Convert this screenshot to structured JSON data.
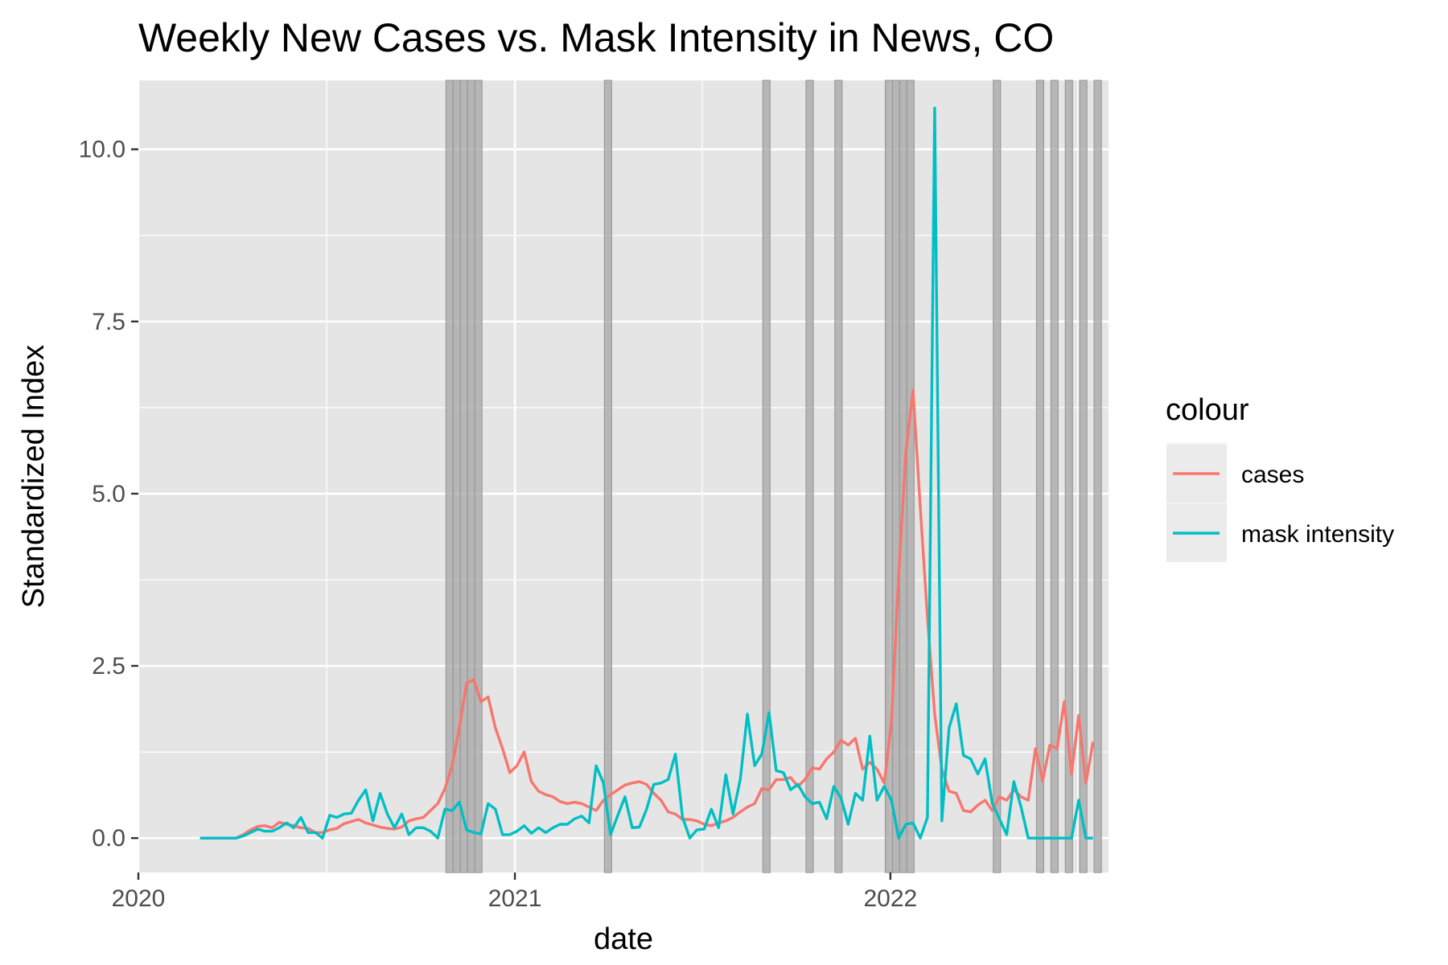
{
  "chart_data": {
    "type": "line",
    "title": "Weekly New Cases vs. Mask Intensity in News, CO",
    "xlabel": "date",
    "ylabel": "Standardized Index",
    "xlim": [
      "2020-01-01",
      "2022-08-01"
    ],
    "ylim": [
      -0.5,
      11
    ],
    "x_ticks": [
      {
        "label": "2020",
        "date": "2020-01-01"
      },
      {
        "label": "2021",
        "date": "2021-01-01"
      },
      {
        "label": "2022",
        "date": "2022-01-01"
      }
    ],
    "y_ticks": [
      {
        "label": "0.0",
        "value": 0
      },
      {
        "label": "2.5",
        "value": 2.5
      },
      {
        "label": "5.0",
        "value": 5
      },
      {
        "label": "7.5",
        "value": 7.5
      },
      {
        "label": "10.0",
        "value": 10
      }
    ],
    "grid": true,
    "background": "#e5e5e5",
    "legend": {
      "title": "colour",
      "position": "right"
    },
    "shaded_weeks": [
      "2020-10-26",
      "2020-11-02",
      "2020-11-09",
      "2020-11-16",
      "2020-11-23",
      "2021-03-29",
      "2021-08-30",
      "2021-10-11",
      "2021-11-08",
      "2021-12-27",
      "2022-01-03",
      "2022-01-10",
      "2022-01-17",
      "2022-04-11",
      "2022-05-23",
      "2022-06-06",
      "2022-06-20",
      "2022-07-04",
      "2022-07-18"
    ],
    "shade_color": "#a6a6a6",
    "series": [
      {
        "name": "cases",
        "color": "#f8766d",
        "points": [
          [
            "2020-03-01",
            0
          ],
          [
            "2020-03-08",
            0
          ],
          [
            "2020-03-15",
            0
          ],
          [
            "2020-03-22",
            0
          ],
          [
            "2020-03-29",
            0
          ],
          [
            "2020-04-05",
            0
          ],
          [
            "2020-04-12",
            0.05
          ],
          [
            "2020-04-19",
            0.12
          ],
          [
            "2020-04-26",
            0.17
          ],
          [
            "2020-05-03",
            0.18
          ],
          [
            "2020-05-10",
            0.15
          ],
          [
            "2020-05-17",
            0.23
          ],
          [
            "2020-05-24",
            0.2
          ],
          [
            "2020-05-31",
            0.18
          ],
          [
            "2020-06-07",
            0.15
          ],
          [
            "2020-06-14",
            0.14
          ],
          [
            "2020-06-21",
            0.08
          ],
          [
            "2020-06-28",
            0.08
          ],
          [
            "2020-07-05",
            0.12
          ],
          [
            "2020-07-12",
            0.14
          ],
          [
            "2020-07-19",
            0.21
          ],
          [
            "2020-07-26",
            0.24
          ],
          [
            "2020-08-02",
            0.27
          ],
          [
            "2020-08-09",
            0.22
          ],
          [
            "2020-08-16",
            0.19
          ],
          [
            "2020-08-23",
            0.16
          ],
          [
            "2020-08-30",
            0.14
          ],
          [
            "2020-09-06",
            0.13
          ],
          [
            "2020-09-13",
            0.16
          ],
          [
            "2020-09-20",
            0.25
          ],
          [
            "2020-09-27",
            0.28
          ],
          [
            "2020-10-04",
            0.3
          ],
          [
            "2020-10-11",
            0.4
          ],
          [
            "2020-10-18",
            0.5
          ],
          [
            "2020-10-25",
            0.72
          ],
          [
            "2020-11-01",
            1.05
          ],
          [
            "2020-11-08",
            1.6
          ],
          [
            "2020-11-15",
            2.25
          ],
          [
            "2020-11-22",
            2.3
          ],
          [
            "2020-11-29",
            1.98
          ],
          [
            "2020-12-06",
            2.05
          ],
          [
            "2020-12-13",
            1.6
          ],
          [
            "2020-12-20",
            1.3
          ],
          [
            "2020-12-27",
            0.95
          ],
          [
            "2021-01-03",
            1.05
          ],
          [
            "2021-01-10",
            1.25
          ],
          [
            "2021-01-17",
            0.82
          ],
          [
            "2021-01-24",
            0.68
          ],
          [
            "2021-01-31",
            0.63
          ],
          [
            "2021-02-07",
            0.6
          ],
          [
            "2021-02-14",
            0.53
          ],
          [
            "2021-02-21",
            0.5
          ],
          [
            "2021-02-28",
            0.52
          ],
          [
            "2021-03-07",
            0.5
          ],
          [
            "2021-03-14",
            0.45
          ],
          [
            "2021-03-21",
            0.4
          ],
          [
            "2021-03-28",
            0.55
          ],
          [
            "2021-04-04",
            0.63
          ],
          [
            "2021-04-11",
            0.7
          ],
          [
            "2021-04-18",
            0.77
          ],
          [
            "2021-04-25",
            0.8
          ],
          [
            "2021-05-02",
            0.82
          ],
          [
            "2021-05-09",
            0.78
          ],
          [
            "2021-05-16",
            0.65
          ],
          [
            "2021-05-23",
            0.55
          ],
          [
            "2021-05-30",
            0.38
          ],
          [
            "2021-06-06",
            0.35
          ],
          [
            "2021-06-13",
            0.27
          ],
          [
            "2021-06-20",
            0.27
          ],
          [
            "2021-06-27",
            0.25
          ],
          [
            "2021-07-04",
            0.2
          ],
          [
            "2021-07-11",
            0.18
          ],
          [
            "2021-07-18",
            0.22
          ],
          [
            "2021-07-25",
            0.25
          ],
          [
            "2021-08-01",
            0.3
          ],
          [
            "2021-08-08",
            0.38
          ],
          [
            "2021-08-15",
            0.45
          ],
          [
            "2021-08-22",
            0.5
          ],
          [
            "2021-08-29",
            0.72
          ],
          [
            "2021-09-05",
            0.7
          ],
          [
            "2021-09-12",
            0.85
          ],
          [
            "2021-09-19",
            0.85
          ],
          [
            "2021-09-26",
            0.88
          ],
          [
            "2021-10-03",
            0.75
          ],
          [
            "2021-10-10",
            0.85
          ],
          [
            "2021-10-17",
            1.02
          ],
          [
            "2021-10-24",
            1.0
          ],
          [
            "2021-10-31",
            1.15
          ],
          [
            "2021-11-07",
            1.25
          ],
          [
            "2021-11-14",
            1.42
          ],
          [
            "2021-11-21",
            1.35
          ],
          [
            "2021-11-28",
            1.45
          ],
          [
            "2021-12-05",
            1.0
          ],
          [
            "2021-12-12",
            1.1
          ],
          [
            "2021-12-19",
            1.0
          ],
          [
            "2021-12-26",
            0.8
          ],
          [
            "2022-01-02",
            1.7
          ],
          [
            "2022-01-09",
            3.8
          ],
          [
            "2022-01-16",
            5.6
          ],
          [
            "2022-01-23",
            6.5
          ],
          [
            "2022-01-30",
            4.8
          ],
          [
            "2022-02-06",
            3.2
          ],
          [
            "2022-02-13",
            1.8
          ],
          [
            "2022-02-20",
            1.0
          ],
          [
            "2022-02-27",
            0.68
          ],
          [
            "2022-03-06",
            0.65
          ],
          [
            "2022-03-13",
            0.4
          ],
          [
            "2022-03-20",
            0.38
          ],
          [
            "2022-03-27",
            0.48
          ],
          [
            "2022-04-03",
            0.55
          ],
          [
            "2022-04-10",
            0.4
          ],
          [
            "2022-04-17",
            0.6
          ],
          [
            "2022-04-24",
            0.55
          ],
          [
            "2022-05-01",
            0.7
          ],
          [
            "2022-05-08",
            0.6
          ],
          [
            "2022-05-15",
            0.55
          ],
          [
            "2022-05-22",
            1.3
          ],
          [
            "2022-05-29",
            0.83
          ],
          [
            "2022-06-05",
            1.35
          ],
          [
            "2022-06-12",
            1.3
          ],
          [
            "2022-06-19",
            1.98
          ],
          [
            "2022-06-26",
            0.93
          ],
          [
            "2022-07-03",
            1.78
          ],
          [
            "2022-07-10",
            0.8
          ],
          [
            "2022-07-17",
            1.4
          ]
        ]
      },
      {
        "name": "mask intensity",
        "color": "#00bfc4",
        "points": [
          [
            "2020-03-01",
            0
          ],
          [
            "2020-03-08",
            0
          ],
          [
            "2020-03-15",
            0
          ],
          [
            "2020-03-22",
            0
          ],
          [
            "2020-03-29",
            0
          ],
          [
            "2020-04-05",
            0
          ],
          [
            "2020-04-12",
            0.03
          ],
          [
            "2020-04-19",
            0.08
          ],
          [
            "2020-04-26",
            0.13
          ],
          [
            "2020-05-03",
            0.1
          ],
          [
            "2020-05-10",
            0.1
          ],
          [
            "2020-05-17",
            0.15
          ],
          [
            "2020-05-24",
            0.22
          ],
          [
            "2020-05-31",
            0.15
          ],
          [
            "2020-06-07",
            0.3
          ],
          [
            "2020-06-14",
            0.08
          ],
          [
            "2020-06-21",
            0.08
          ],
          [
            "2020-06-28",
            0.0
          ],
          [
            "2020-07-05",
            0.33
          ],
          [
            "2020-07-12",
            0.3
          ],
          [
            "2020-07-19",
            0.35
          ],
          [
            "2020-07-26",
            0.36
          ],
          [
            "2020-08-02",
            0.55
          ],
          [
            "2020-08-09",
            0.7
          ],
          [
            "2020-08-16",
            0.25
          ],
          [
            "2020-08-23",
            0.65
          ],
          [
            "2020-08-30",
            0.35
          ],
          [
            "2020-09-06",
            0.15
          ],
          [
            "2020-09-13",
            0.35
          ],
          [
            "2020-09-20",
            0.05
          ],
          [
            "2020-09-27",
            0.15
          ],
          [
            "2020-10-04",
            0.15
          ],
          [
            "2020-10-11",
            0.1
          ],
          [
            "2020-10-18",
            0.0
          ],
          [
            "2020-10-25",
            0.42
          ],
          [
            "2020-11-01",
            0.4
          ],
          [
            "2020-11-08",
            0.52
          ],
          [
            "2020-11-15",
            0.12
          ],
          [
            "2020-11-22",
            0.08
          ],
          [
            "2020-11-29",
            0.06
          ],
          [
            "2020-12-06",
            0.5
          ],
          [
            "2020-12-13",
            0.42
          ],
          [
            "2020-12-20",
            0.05
          ],
          [
            "2020-12-27",
            0.05
          ],
          [
            "2021-01-03",
            0.1
          ],
          [
            "2021-01-10",
            0.18
          ],
          [
            "2021-01-17",
            0.07
          ],
          [
            "2021-01-24",
            0.15
          ],
          [
            "2021-01-31",
            0.08
          ],
          [
            "2021-02-07",
            0.15
          ],
          [
            "2021-02-14",
            0.2
          ],
          [
            "2021-02-21",
            0.2
          ],
          [
            "2021-02-28",
            0.28
          ],
          [
            "2021-03-07",
            0.32
          ],
          [
            "2021-03-14",
            0.22
          ],
          [
            "2021-03-21",
            1.05
          ],
          [
            "2021-03-28",
            0.8
          ],
          [
            "2021-04-04",
            0.05
          ],
          [
            "2021-04-11",
            0.33
          ],
          [
            "2021-04-18",
            0.6
          ],
          [
            "2021-04-25",
            0.15
          ],
          [
            "2021-05-02",
            0.16
          ],
          [
            "2021-05-09",
            0.42
          ],
          [
            "2021-05-16",
            0.78
          ],
          [
            "2021-05-23",
            0.8
          ],
          [
            "2021-05-30",
            0.85
          ],
          [
            "2021-06-06",
            1.22
          ],
          [
            "2021-06-13",
            0.3
          ],
          [
            "2021-06-20",
            0.0
          ],
          [
            "2021-06-27",
            0.12
          ],
          [
            "2021-07-04",
            0.13
          ],
          [
            "2021-07-11",
            0.42
          ],
          [
            "2021-07-18",
            0.15
          ],
          [
            "2021-07-25",
            0.92
          ],
          [
            "2021-08-01",
            0.35
          ],
          [
            "2021-08-08",
            0.85
          ],
          [
            "2021-08-15",
            1.8
          ],
          [
            "2021-08-22",
            1.05
          ],
          [
            "2021-08-29",
            1.22
          ],
          [
            "2021-09-05",
            1.82
          ],
          [
            "2021-09-12",
            0.98
          ],
          [
            "2021-09-19",
            0.95
          ],
          [
            "2021-09-26",
            0.7
          ],
          [
            "2021-10-03",
            0.78
          ],
          [
            "2021-10-10",
            0.6
          ],
          [
            "2021-10-17",
            0.5
          ],
          [
            "2021-10-24",
            0.52
          ],
          [
            "2021-10-31",
            0.28
          ],
          [
            "2021-11-07",
            0.75
          ],
          [
            "2021-11-14",
            0.58
          ],
          [
            "2021-11-21",
            0.2
          ],
          [
            "2021-11-28",
            0.65
          ],
          [
            "2021-12-05",
            0.55
          ],
          [
            "2021-12-12",
            1.48
          ],
          [
            "2021-12-19",
            0.55
          ],
          [
            "2021-12-26",
            0.75
          ],
          [
            "2022-01-02",
            0.55
          ],
          [
            "2022-01-09",
            0.0
          ],
          [
            "2022-01-16",
            0.2
          ],
          [
            "2022-01-23",
            0.22
          ],
          [
            "2022-01-30",
            0.0
          ],
          [
            "2022-02-06",
            0.3
          ],
          [
            "2022-02-13",
            10.6
          ],
          [
            "2022-02-20",
            0.25
          ],
          [
            "2022-02-27",
            1.6
          ],
          [
            "2022-03-06",
            1.95
          ],
          [
            "2022-03-13",
            1.2
          ],
          [
            "2022-03-20",
            1.15
          ],
          [
            "2022-03-27",
            0.93
          ],
          [
            "2022-04-03",
            1.15
          ],
          [
            "2022-04-10",
            0.5
          ],
          [
            "2022-04-17",
            0.28
          ],
          [
            "2022-04-24",
            0.05
          ],
          [
            "2022-05-01",
            0.82
          ],
          [
            "2022-05-08",
            0.45
          ],
          [
            "2022-05-15",
            0.0
          ],
          [
            "2022-05-22",
            0.0
          ],
          [
            "2022-05-29",
            0.0
          ],
          [
            "2022-06-05",
            0.0
          ],
          [
            "2022-06-12",
            0.0
          ],
          [
            "2022-06-19",
            0.0
          ],
          [
            "2022-06-26",
            0.0
          ],
          [
            "2022-07-03",
            0.55
          ],
          [
            "2022-07-10",
            0.0
          ],
          [
            "2022-07-17",
            0.0
          ]
        ]
      }
    ]
  }
}
